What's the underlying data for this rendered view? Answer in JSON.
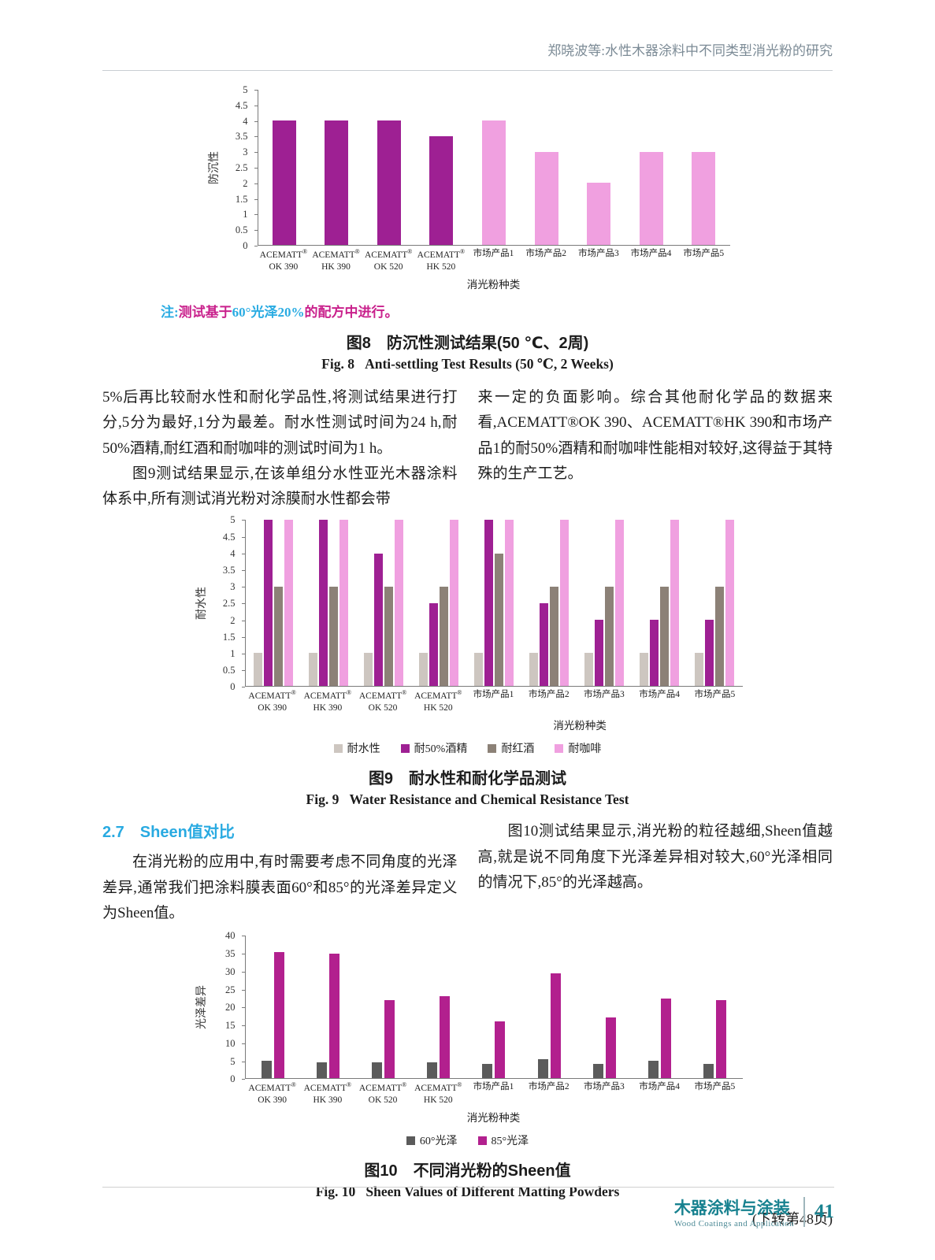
{
  "header": {
    "running_title": "郑晓波等:水性木器涂料中不同类型消光粉的研究"
  },
  "figure8": {
    "note_segments": [
      {
        "text": "注:",
        "color": "#29abe2"
      },
      {
        "text": "测试基于",
        "color": "#c9218c"
      },
      {
        "text": "60°光泽20%",
        "color": "#29abe2"
      },
      {
        "text": "的配方中进行。",
        "color": "#c9218c"
      }
    ],
    "caption_zh": "图8　防沉性测试结果(50 ℃、2周)",
    "caption_en": "Fig. 8   Anti-settling Test Results (50 ℃, 2 Weeks)"
  },
  "body1": {
    "left_p1": "5%后再比较耐水性和耐化学品性,将测试结果进行打分,5分为最好,1分为最差。耐水性测试时间为24 h,耐50%酒精,耐红酒和耐咖啡的测试时间为1 h。",
    "left_p2": "图9测试结果显示,在该单组分水性亚光木器涂料体系中,所有测试消光粉对涂膜耐水性都会带",
    "right_p1": "来一定的负面影响。综合其他耐化学品的数据来看,ACEMATT®OK 390、ACEMATT®HK 390和市场产品1的耐50%酒精和耐咖啡性能相对较好,这得益于其特殊的生产工艺。"
  },
  "figure9": {
    "caption_zh": "图9　耐水性和耐化学品测试",
    "caption_en": "Fig. 9   Water Resistance and Chemical Resistance Test"
  },
  "section27": {
    "heading": "2.7　Sheen值对比",
    "left_p1": "在消光粉的应用中,有时需要考虑不同角度的光泽差异,通常我们把涂料膜表面60°和85°的光泽差异定义为Sheen值。",
    "right_p1": "图10测试结果显示,消光粉的粒径越细,Sheen值越高,就是说不同角度下光泽差异相对较大,60°光泽相同的情况下,85°的光泽越高。"
  },
  "figure10": {
    "caption_zh": "图10　不同消光粉的Sheen值",
    "caption_en": "Fig. 10   Sheen Values of Different Matting Powders"
  },
  "footer": {
    "continue_note": "(下转第48页)",
    "journal_zh": "木器涂料与涂装",
    "journal_en": "Wood Coatings and Application",
    "page_number": "41"
  },
  "chart_data": [
    {
      "id": "fig8",
      "type": "bar",
      "title": "防沉性测试结果(50 ℃、2周)",
      "ylabel": "防沉性",
      "xlabel": "消光粉种类",
      "ylim": [
        0,
        5
      ],
      "ytick_step": 0.5,
      "grid": false,
      "legend": false,
      "categories": [
        [
          "ACEMATT®",
          "OK 390"
        ],
        [
          "ACEMATT®",
          "HK 390"
        ],
        [
          "ACEMATT®",
          "OK 520"
        ],
        [
          "ACEMATT®",
          "HK 520"
        ],
        [
          "市场产品1"
        ],
        [
          "市场产品2"
        ],
        [
          "市场产品3"
        ],
        [
          "市场产品4"
        ],
        [
          "市场产品5"
        ]
      ],
      "series": [
        {
          "name": "防沉性",
          "key": "anti-settling",
          "color": "#9e2093",
          "colors": [
            "#9e2093",
            "#9e2093",
            "#9e2093",
            "#9e2093",
            "#f0a0e0",
            "#f0a0e0",
            "#f0a0e0",
            "#f0a0e0",
            "#f0a0e0"
          ],
          "values": [
            4,
            4,
            4,
            3.5,
            4,
            3,
            2,
            3,
            3
          ]
        }
      ]
    },
    {
      "id": "fig9",
      "type": "bar",
      "title": "耐水性和耐化学品测试",
      "ylabel": "耐水性",
      "xlabel": "消光粉种类",
      "ylim": [
        0,
        5
      ],
      "ytick_step": 0.5,
      "grid": false,
      "legend": true,
      "legend_position": "bottom",
      "categories": [
        [
          "ACEMATT®",
          "OK 390"
        ],
        [
          "ACEMATT®",
          "HK 390"
        ],
        [
          "ACEMATT®",
          "OK 520"
        ],
        [
          "ACEMATT®",
          "HK 520"
        ],
        [
          "市场产品1"
        ],
        [
          "市场产品2"
        ],
        [
          "市场产品3"
        ],
        [
          "市场产品4"
        ],
        [
          "市场产品5"
        ]
      ],
      "series": [
        {
          "name": "耐水性",
          "key": "water-resistance",
          "color": "#cdc6c0",
          "values": [
            1,
            1,
            1,
            1,
            1,
            1,
            1,
            1,
            1
          ]
        },
        {
          "name": "耐50%酒精",
          "key": "alcohol-resistance",
          "color": "#9e2093",
          "values": [
            5,
            5,
            4,
            2.5,
            5,
            2.5,
            2,
            2,
            2
          ]
        },
        {
          "name": "耐红酒",
          "key": "red-wine-resistance",
          "color": "#8c8177",
          "values": [
            3,
            3,
            3,
            3,
            4,
            3,
            3,
            3,
            3
          ]
        },
        {
          "name": "耐咖啡",
          "key": "coffee-resistance",
          "color": "#f0a0e0",
          "values": [
            5,
            5,
            5,
            5,
            5,
            5,
            5,
            5,
            5
          ]
        }
      ]
    },
    {
      "id": "fig10",
      "type": "bar",
      "title": "不同消光粉的Sheen值",
      "ylabel": "光泽差异",
      "xlabel": "消光粉种类",
      "ylim": [
        0,
        40
      ],
      "ytick_step": 5,
      "grid": false,
      "legend": true,
      "legend_position": "bottom",
      "categories": [
        [
          "ACEMATT®",
          "OK 390"
        ],
        [
          "ACEMATT®",
          "HK 390"
        ],
        [
          "ACEMATT®",
          "OK 520"
        ],
        [
          "ACEMATT®",
          "HK 520"
        ],
        [
          "市场产品1"
        ],
        [
          "市场产品2"
        ],
        [
          "市场产品3"
        ],
        [
          "市场产品4"
        ],
        [
          "市场产品5"
        ]
      ],
      "series": [
        {
          "name": "60°光泽",
          "key": "gloss-60",
          "color": "#5b5b5b",
          "values": [
            5,
            4.5,
            4.5,
            4.5,
            4,
            5.5,
            4,
            5,
            4
          ]
        },
        {
          "name": "85°光泽",
          "key": "gloss-85",
          "color": "#b2208e",
          "values": [
            35.5,
            35,
            22,
            23,
            16,
            29.5,
            17,
            22.5,
            22
          ]
        }
      ]
    }
  ]
}
